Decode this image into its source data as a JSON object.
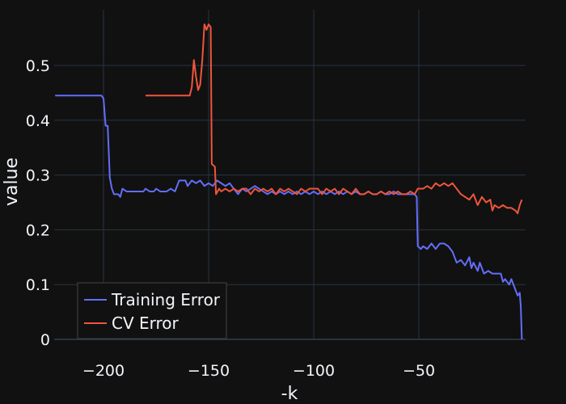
{
  "chart_data": {
    "type": "line",
    "xlabel": "-k",
    "ylabel": "value",
    "xlim": [
      -223,
      -1
    ],
    "ylim": [
      -0.013,
      0.6
    ],
    "xticks": [
      -200,
      -150,
      -100,
      -50
    ],
    "xtick_labels": [
      "−200",
      "−150",
      "−100",
      "−50"
    ],
    "yticks": [
      0,
      0.1,
      0.2,
      0.3,
      0.4,
      0.5
    ],
    "ytick_labels": [
      "0",
      "0.1",
      "0.2",
      "0.3",
      "0.4",
      "0.5"
    ],
    "grid": true,
    "legend_position": "bottom-left",
    "series": [
      {
        "name": "Training Error",
        "color": "#636efa",
        "points": [
          [
            -223,
            0.445
          ],
          [
            -201,
            0.445
          ],
          [
            -200,
            0.44
          ],
          [
            -199,
            0.39
          ],
          [
            -198,
            0.39
          ],
          [
            -197,
            0.295
          ],
          [
            -196,
            0.275
          ],
          [
            -195,
            0.265
          ],
          [
            -193,
            0.265
          ],
          [
            -192,
            0.26
          ],
          [
            -191,
            0.275
          ],
          [
            -189,
            0.27
          ],
          [
            -185,
            0.27
          ],
          [
            -181,
            0.27
          ],
          [
            -180,
            0.275
          ],
          [
            -178,
            0.27
          ],
          [
            -176,
            0.27
          ],
          [
            -175,
            0.275
          ],
          [
            -173,
            0.27
          ],
          [
            -170,
            0.27
          ],
          [
            -168,
            0.275
          ],
          [
            -166,
            0.27
          ],
          [
            -164,
            0.29
          ],
          [
            -161,
            0.29
          ],
          [
            -160,
            0.28
          ],
          [
            -158,
            0.29
          ],
          [
            -156,
            0.285
          ],
          [
            -154,
            0.29
          ],
          [
            -152,
            0.28
          ],
          [
            -150,
            0.285
          ],
          [
            -148,
            0.28
          ],
          [
            -146,
            0.29
          ],
          [
            -144,
            0.285
          ],
          [
            -142,
            0.28
          ],
          [
            -140,
            0.285
          ],
          [
            -138,
            0.275
          ],
          [
            -136,
            0.265
          ],
          [
            -134,
            0.275
          ],
          [
            -132,
            0.27
          ],
          [
            -130,
            0.275
          ],
          [
            -128,
            0.28
          ],
          [
            -126,
            0.275
          ],
          [
            -124,
            0.27
          ],
          [
            -122,
            0.265
          ],
          [
            -120,
            0.27
          ],
          [
            -118,
            0.265
          ],
          [
            -116,
            0.27
          ],
          [
            -114,
            0.265
          ],
          [
            -112,
            0.27
          ],
          [
            -110,
            0.265
          ],
          [
            -108,
            0.27
          ],
          [
            -106,
            0.265
          ],
          [
            -104,
            0.27
          ],
          [
            -102,
            0.265
          ],
          [
            -100,
            0.27
          ],
          [
            -98,
            0.265
          ],
          [
            -96,
            0.27
          ],
          [
            -94,
            0.265
          ],
          [
            -92,
            0.27
          ],
          [
            -90,
            0.265
          ],
          [
            -88,
            0.27
          ],
          [
            -86,
            0.265
          ],
          [
            -84,
            0.27
          ],
          [
            -82,
            0.265
          ],
          [
            -80,
            0.27
          ],
          [
            -78,
            0.265
          ],
          [
            -76,
            0.265
          ],
          [
            -74,
            0.27
          ],
          [
            -72,
            0.265
          ],
          [
            -70,
            0.265
          ],
          [
            -68,
            0.27
          ],
          [
            -66,
            0.265
          ],
          [
            -64,
            0.265
          ],
          [
            -62,
            0.27
          ],
          [
            -60,
            0.265
          ],
          [
            -58,
            0.265
          ],
          [
            -56,
            0.265
          ],
          [
            -54,
            0.265
          ],
          [
            -52,
            0.265
          ],
          [
            -51,
            0.26
          ],
          [
            -50.5,
            0.17
          ],
          [
            -49,
            0.165
          ],
          [
            -48,
            0.17
          ],
          [
            -46,
            0.165
          ],
          [
            -44,
            0.175
          ],
          [
            -42,
            0.165
          ],
          [
            -40,
            0.175
          ],
          [
            -38,
            0.175
          ],
          [
            -36,
            0.17
          ],
          [
            -34,
            0.16
          ],
          [
            -33,
            0.15
          ],
          [
            -32,
            0.14
          ],
          [
            -30,
            0.145
          ],
          [
            -28,
            0.135
          ],
          [
            -26,
            0.15
          ],
          [
            -25,
            0.13
          ],
          [
            -24,
            0.14
          ],
          [
            -22,
            0.125
          ],
          [
            -21,
            0.14
          ],
          [
            -19,
            0.12
          ],
          [
            -17,
            0.125
          ],
          [
            -15,
            0.12
          ],
          [
            -13,
            0.12
          ],
          [
            -11,
            0.12
          ],
          [
            -10,
            0.105
          ],
          [
            -9,
            0.11
          ],
          [
            -7,
            0.1
          ],
          [
            -6,
            0.11
          ],
          [
            -5,
            0.1
          ],
          [
            -3,
            0.08
          ],
          [
            -2,
            0.085
          ],
          [
            -1.5,
            0.06
          ],
          [
            -1,
            0.0
          ]
        ]
      },
      {
        "name": "CV Error",
        "color": "#ef553b",
        "points": [
          [
            -180,
            0.445
          ],
          [
            -159,
            0.445
          ],
          [
            -158,
            0.46
          ],
          [
            -157,
            0.51
          ],
          [
            -156,
            0.48
          ],
          [
            -155,
            0.455
          ],
          [
            -154,
            0.465
          ],
          [
            -153,
            0.51
          ],
          [
            -152,
            0.575
          ],
          [
            -151,
            0.565
          ],
          [
            -150,
            0.575
          ],
          [
            -149,
            0.57
          ],
          [
            -148.5,
            0.32
          ],
          [
            -147,
            0.315
          ],
          [
            -146.5,
            0.265
          ],
          [
            -145,
            0.275
          ],
          [
            -144,
            0.27
          ],
          [
            -142,
            0.275
          ],
          [
            -140,
            0.27
          ],
          [
            -138,
            0.275
          ],
          [
            -136,
            0.27
          ],
          [
            -134,
            0.275
          ],
          [
            -132,
            0.275
          ],
          [
            -130,
            0.265
          ],
          [
            -128,
            0.275
          ],
          [
            -126,
            0.27
          ],
          [
            -124,
            0.275
          ],
          [
            -122,
            0.27
          ],
          [
            -120,
            0.275
          ],
          [
            -118,
            0.265
          ],
          [
            -116,
            0.275
          ],
          [
            -114,
            0.27
          ],
          [
            -112,
            0.275
          ],
          [
            -110,
            0.27
          ],
          [
            -108,
            0.265
          ],
          [
            -106,
            0.275
          ],
          [
            -104,
            0.27
          ],
          [
            -102,
            0.275
          ],
          [
            -100,
            0.275
          ],
          [
            -98,
            0.275
          ],
          [
            -96,
            0.265
          ],
          [
            -94,
            0.275
          ],
          [
            -92,
            0.27
          ],
          [
            -90,
            0.275
          ],
          [
            -88,
            0.265
          ],
          [
            -86,
            0.275
          ],
          [
            -84,
            0.27
          ],
          [
            -82,
            0.265
          ],
          [
            -80,
            0.275
          ],
          [
            -78,
            0.265
          ],
          [
            -76,
            0.265
          ],
          [
            -74,
            0.27
          ],
          [
            -72,
            0.265
          ],
          [
            -70,
            0.265
          ],
          [
            -68,
            0.27
          ],
          [
            -66,
            0.265
          ],
          [
            -64,
            0.27
          ],
          [
            -62,
            0.265
          ],
          [
            -60,
            0.27
          ],
          [
            -58,
            0.265
          ],
          [
            -56,
            0.265
          ],
          [
            -54,
            0.27
          ],
          [
            -52,
            0.265
          ],
          [
            -50.5,
            0.275
          ],
          [
            -48,
            0.275
          ],
          [
            -46,
            0.28
          ],
          [
            -44,
            0.275
          ],
          [
            -42,
            0.285
          ],
          [
            -40,
            0.28
          ],
          [
            -38,
            0.285
          ],
          [
            -36,
            0.28
          ],
          [
            -34,
            0.285
          ],
          [
            -32,
            0.275
          ],
          [
            -30,
            0.265
          ],
          [
            -28,
            0.26
          ],
          [
            -26,
            0.255
          ],
          [
            -24,
            0.265
          ],
          [
            -22,
            0.245
          ],
          [
            -20,
            0.26
          ],
          [
            -18,
            0.25
          ],
          [
            -16,
            0.255
          ],
          [
            -15,
            0.235
          ],
          [
            -14,
            0.245
          ],
          [
            -12,
            0.24
          ],
          [
            -10,
            0.245
          ],
          [
            -8,
            0.24
          ],
          [
            -6,
            0.24
          ],
          [
            -4,
            0.235
          ],
          [
            -3,
            0.23
          ],
          [
            -2,
            0.245
          ],
          [
            -1.5,
            0.25
          ],
          [
            -1,
            0.255
          ]
        ]
      }
    ]
  }
}
